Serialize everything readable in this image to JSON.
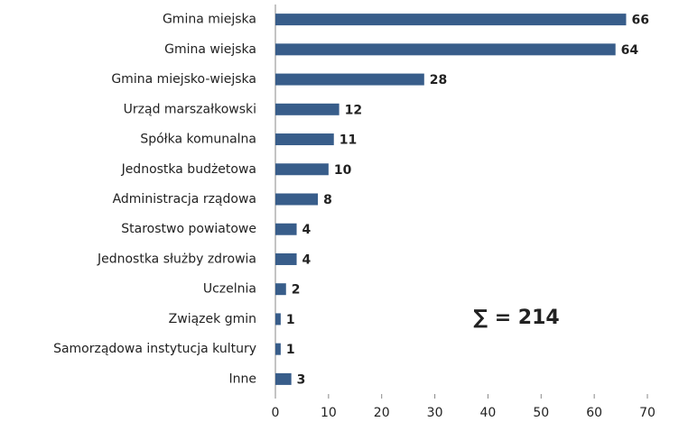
{
  "chart_data": {
    "type": "barh",
    "categories": [
      "Gmina miejska",
      "Gmina wiejska",
      "Gmina miejsko-wiejska",
      "Urząd marszałkowski",
      "Spółka komunalna",
      "Jednostka budżetowa",
      "Administracja rządowa",
      "Starostwo powiatowe",
      "Jednostka służby zdrowia",
      "Uczelnia",
      "Związek gmin",
      "Samorządowa instytucja kultury",
      "Inne"
    ],
    "values": [
      66,
      64,
      28,
      12,
      11,
      10,
      8,
      4,
      4,
      2,
      1,
      1,
      3
    ],
    "color": "#385d8a",
    "xlim": [
      0,
      70
    ],
    "xticks": [
      0,
      10,
      20,
      30,
      40,
      50,
      60,
      70
    ],
    "grid": false,
    "annotation": "∑ = 214"
  }
}
